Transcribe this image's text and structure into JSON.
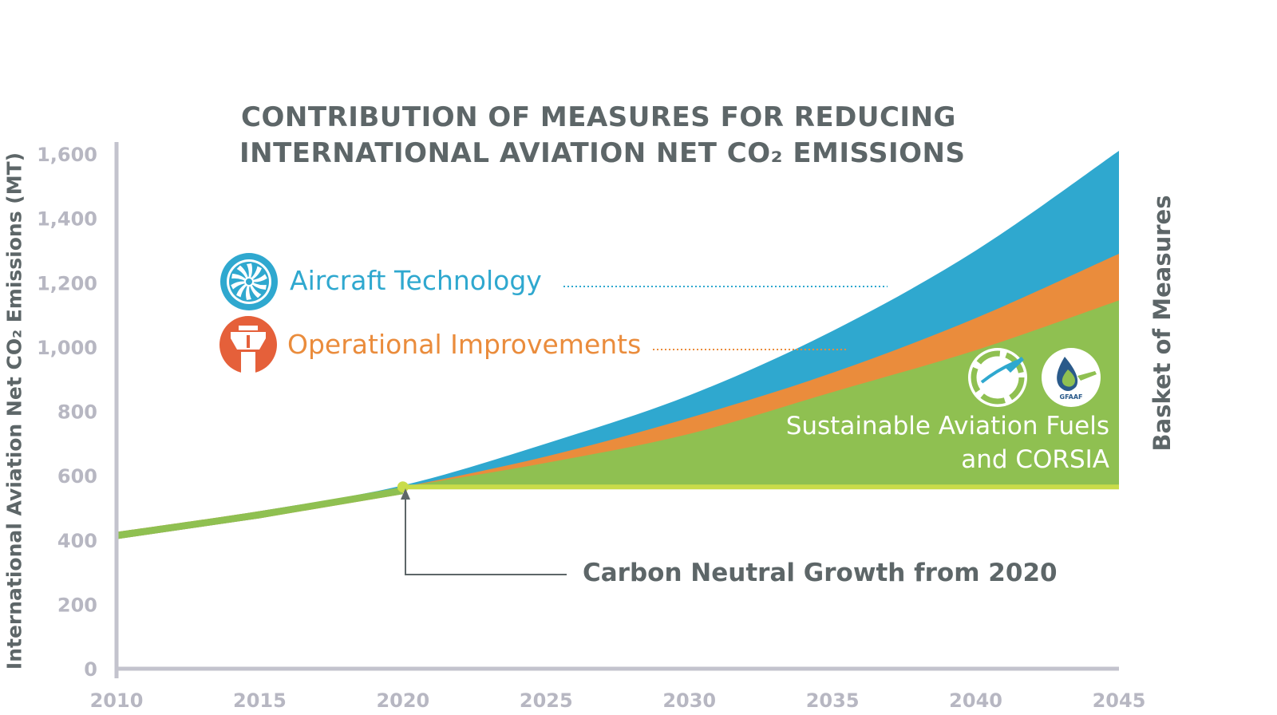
{
  "chart_data": {
    "type": "area",
    "title_line1": "CONTRIBUTION OF MEASURES FOR REDUCING",
    "title_line2": "INTERNATIONAL AVIATION NET CO₂ EMISSIONS",
    "ylabel": "International Aviation Net CO₂ Emissions (MT)",
    "right_label": "Basket of Measures",
    "xlim": [
      2010,
      2045
    ],
    "ylim": [
      0,
      1600
    ],
    "x_ticks": [
      "2010",
      "2015",
      "2020",
      "2025",
      "2030",
      "2035",
      "2040",
      "2045"
    ],
    "y_ticks": [
      "0",
      "200",
      "400",
      "600",
      "800",
      "1,000",
      "1,200",
      "1,400",
      "1,600"
    ],
    "x": [
      2010,
      2015,
      2020,
      2025,
      2030,
      2035,
      2040,
      2045
    ],
    "series": [
      {
        "name": "Aircraft Technology",
        "color": "#2fa8cf",
        "values": [
          425,
          490,
          570,
          700,
          850,
          1050,
          1300,
          1610
        ]
      },
      {
        "name": "Operational Improvements",
        "color": "#ea8c3c",
        "values": [
          425,
          490,
          565,
          660,
          780,
          920,
          1090,
          1290
        ]
      },
      {
        "name": "Sustainable Aviation Fuels and CORSIA",
        "color": "#8fc051",
        "values": [
          425,
          490,
          565,
          640,
          730,
          860,
          990,
          1145
        ]
      }
    ],
    "baseline": {
      "name": "Carbon Neutral Growth from 2020",
      "value": 565,
      "from": 2020,
      "color": "#c9dc4a"
    },
    "saf_label_line1": "Sustainable Aviation Fuels",
    "saf_label_line2": "and CORSIA",
    "legend_aircraft": "Aircraft Technology",
    "legend_ops": "Operational Improvements",
    "annotation_cng": "Carbon Neutral Growth from 2020",
    "logo_text": "GFAAF",
    "colors": {
      "axis": "#c3c3cd",
      "tick_text": "#b7b7c2",
      "title_text": "#5d6668",
      "aircraft_icon": "#2fa8cf",
      "ops_icon": "#e5603a",
      "saf_icon": "#8fc051"
    }
  }
}
